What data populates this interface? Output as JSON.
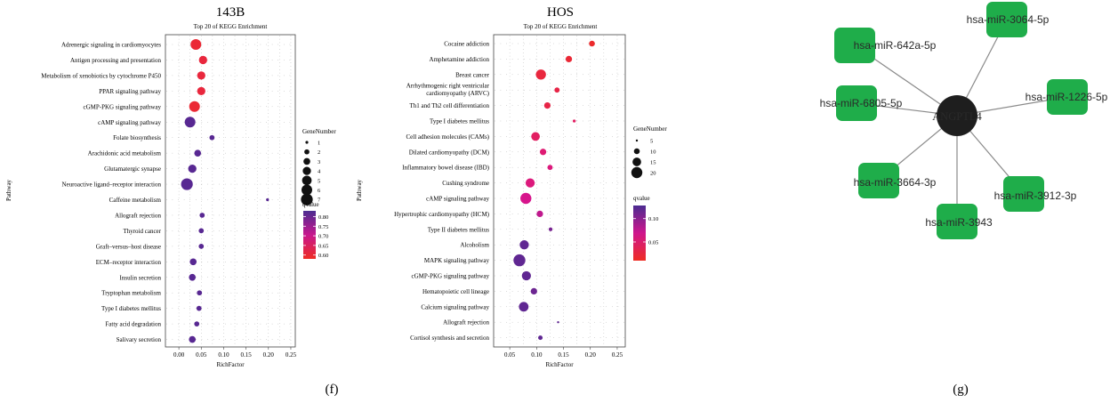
{
  "chart_data": [
    {
      "type": "scatter",
      "title": "143B",
      "subtitle": "Top 20 of KEGG Enrichment",
      "xlabel": "RichFactor",
      "ylabel": "Pathway",
      "xlim": [
        -0.03,
        0.26
      ],
      "xticks": [
        "0.00",
        "0.05",
        "0.10",
        "0.15",
        "0.20",
        "0.25"
      ],
      "xtick_values": [
        0.0,
        0.05,
        0.1,
        0.15,
        0.2,
        0.25
      ],
      "grid": true,
      "categories": [
        "Adrenergic signaling in cardiomyocytes",
        "Antigen processing and presentation",
        "Metabolism of xenobiotics by cytochrome P450",
        "PPAR signaling pathway",
        "cGMP-PKG signaling pathway",
        "cAMP signaling pathway",
        "Folate biosynthesis",
        "Arachidonic acid metabolism",
        "Glutamatergic synapse",
        "Neuroactive ligand–receptor interaction",
        "Caffeine metabolism",
        "Allograft rejection",
        "Thyroid cancer",
        "Graft–versus–host disease",
        "ECM–receptor interaction",
        "Insulin secretion",
        "Tryptophan metabolism",
        "Type I diabetes mellitus",
        "Fatty acid degradation",
        "Salivary secretion"
      ],
      "points": [
        {
          "pathway": "Adrenergic signaling in cardiomyocytes",
          "richfactor": 0.038,
          "genes": 6,
          "qvalue": 0.6
        },
        {
          "pathway": "Antigen processing and presentation",
          "richfactor": 0.054,
          "genes": 4,
          "qvalue": 0.61
        },
        {
          "pathway": "Metabolism of xenobiotics by cytochrome P450",
          "richfactor": 0.05,
          "genes": 4,
          "qvalue": 0.61
        },
        {
          "pathway": "PPAR signaling pathway",
          "richfactor": 0.05,
          "genes": 4,
          "qvalue": 0.61
        },
        {
          "pathway": "cGMP-PKG signaling pathway",
          "richfactor": 0.035,
          "genes": 6,
          "qvalue": 0.6
        },
        {
          "pathway": "cAMP signaling pathway",
          "richfactor": 0.025,
          "genes": 6,
          "qvalue": 0.82
        },
        {
          "pathway": "Folate biosynthesis",
          "richfactor": 0.074,
          "genes": 2,
          "qvalue": 0.82
        },
        {
          "pathway": "Arachidonic acid metabolism",
          "richfactor": 0.042,
          "genes": 3,
          "qvalue": 0.82
        },
        {
          "pathway": "Glutamatergic synapse",
          "richfactor": 0.03,
          "genes": 4,
          "qvalue": 0.82
        },
        {
          "pathway": "Neuroactive ligand–receptor interaction",
          "richfactor": 0.018,
          "genes": 7,
          "qvalue": 0.82
        },
        {
          "pathway": "Caffeine metabolism",
          "richfactor": 0.198,
          "genes": 1,
          "qvalue": 0.82
        },
        {
          "pathway": "Allograft rejection",
          "richfactor": 0.052,
          "genes": 2,
          "qvalue": 0.82
        },
        {
          "pathway": "Thyroid cancer",
          "richfactor": 0.05,
          "genes": 2,
          "qvalue": 0.82
        },
        {
          "pathway": "Graft–versus–host disease",
          "richfactor": 0.05,
          "genes": 2,
          "qvalue": 0.82
        },
        {
          "pathway": "ECM–receptor interaction",
          "richfactor": 0.032,
          "genes": 3,
          "qvalue": 0.82
        },
        {
          "pathway": "Insulin secretion",
          "richfactor": 0.03,
          "genes": 3,
          "qvalue": 0.82
        },
        {
          "pathway": "Tryptophan metabolism",
          "richfactor": 0.046,
          "genes": 2,
          "qvalue": 0.82
        },
        {
          "pathway": "Type I diabetes mellitus",
          "richfactor": 0.045,
          "genes": 2,
          "qvalue": 0.82
        },
        {
          "pathway": "Fatty acid degradation",
          "richfactor": 0.04,
          "genes": 2,
          "qvalue": 0.82
        },
        {
          "pathway": "Salivary secretion",
          "richfactor": 0.03,
          "genes": 3,
          "qvalue": 0.82
        }
      ],
      "size_legend": {
        "title": "GeneNumber",
        "values": [
          "1",
          "2",
          "3",
          "4",
          "5",
          "6",
          "7"
        ],
        "numeric": [
          1,
          2,
          3,
          4,
          5,
          6,
          7
        ]
      },
      "color_legend": {
        "title": "qvalue",
        "ticks": [
          "0.80",
          "0.75",
          "0.70",
          "0.65",
          "0.60"
        ],
        "tick_values": [
          0.8,
          0.75,
          0.7,
          0.65,
          0.6
        ],
        "range": [
          0.58,
          0.83
        ]
      },
      "panel_label": "(f)"
    },
    {
      "type": "scatter",
      "title": "HOS",
      "subtitle": "Top 20 of KEGG Enrichment",
      "xlabel": "RichFactor",
      "ylabel": "Pathway",
      "xlim": [
        0.02,
        0.265
      ],
      "xticks": [
        "0.05",
        "0.10",
        "0.15",
        "0.20",
        "0.25"
      ],
      "xtick_values": [
        0.05,
        0.1,
        0.15,
        0.2,
        0.25
      ],
      "grid": true,
      "categories": [
        "Cocaine addiction",
        "Amphetamine addiction",
        "Breast cancer",
        "Arrhythmogenic right ventricular\ncardiomyopathy (ARVC)",
        "Th1 and Th2 cell differentiation",
        "Type I diabetes mellitus",
        "Cell adhesion molecules (CAMs)",
        "Dilated cardiomyopathy (DCM)",
        "Inflammatory bowel disease (IBD)",
        "Cushing syndrome",
        "cAMP signaling pathway",
        "Hypertrophic cardiomyopathy (HCM)",
        "Type II diabetes mellitus",
        "Alcoholism",
        "MAPK signaling pathway",
        "cGMP-PKG signaling pathway",
        "Hematopoietic cell lineage",
        "Calcium signaling pathway",
        "Allograft rejection",
        "Cortisol synthesis and secretion"
      ],
      "points": [
        {
          "pathway": "Cocaine addiction",
          "richfactor": 0.203,
          "genes": 10,
          "qvalue": 0.015
        },
        {
          "pathway": "Amphetamine addiction",
          "richfactor": 0.16,
          "genes": 11,
          "qvalue": 0.02
        },
        {
          "pathway": "Breast cancer",
          "richfactor": 0.108,
          "genes": 18,
          "qvalue": 0.025
        },
        {
          "pathway": "Arrhythmogenic right ventricular\ncardiomyopathy (ARVC)",
          "richfactor": 0.138,
          "genes": 9,
          "qvalue": 0.03
        },
        {
          "pathway": "Th1 and Th2 cell differentiation",
          "richfactor": 0.12,
          "genes": 11,
          "qvalue": 0.03
        },
        {
          "pathway": "Type I diabetes mellitus",
          "richfactor": 0.17,
          "genes": 6,
          "qvalue": 0.045
        },
        {
          "pathway": "Cell adhesion molecules (CAMs)",
          "richfactor": 0.098,
          "genes": 15,
          "qvalue": 0.045
        },
        {
          "pathway": "Dilated cardiomyopathy (DCM)",
          "richfactor": 0.112,
          "genes": 11,
          "qvalue": 0.055
        },
        {
          "pathway": "Inflammatory bowel disease (IBD)",
          "richfactor": 0.125,
          "genes": 9,
          "qvalue": 0.06
        },
        {
          "pathway": "Cushing syndrome",
          "richfactor": 0.088,
          "genes": 16,
          "qvalue": 0.06
        },
        {
          "pathway": "cAMP signaling pathway",
          "richfactor": 0.08,
          "genes": 20,
          "qvalue": 0.07
        },
        {
          "pathway": "Hypertrophic cardiomyopathy (HCM)",
          "richfactor": 0.106,
          "genes": 11,
          "qvalue": 0.08
        },
        {
          "pathway": "Type II diabetes mellitus",
          "richfactor": 0.126,
          "genes": 7,
          "qvalue": 0.11
        },
        {
          "pathway": "Alcoholism",
          "richfactor": 0.077,
          "genes": 16,
          "qvalue": 0.12
        },
        {
          "pathway": "MAPK signaling pathway",
          "richfactor": 0.068,
          "genes": 22,
          "qvalue": 0.12
        },
        {
          "pathway": "cGMP-PKG signaling pathway",
          "richfactor": 0.081,
          "genes": 16,
          "qvalue": 0.12
        },
        {
          "pathway": "Hematopoietic cell lineage",
          "richfactor": 0.095,
          "genes": 11,
          "qvalue": 0.115
        },
        {
          "pathway": "Calcium signaling pathway",
          "richfactor": 0.076,
          "genes": 17,
          "qvalue": 0.12
        },
        {
          "pathway": "Allograft rejection",
          "richfactor": 0.14,
          "genes": 5,
          "qvalue": 0.12
        },
        {
          "pathway": "Cortisol synthesis and secretion",
          "richfactor": 0.107,
          "genes": 8,
          "qvalue": 0.12
        }
      ],
      "size_legend": {
        "title": "GeneNumber",
        "values": [
          "5",
          "10",
          "15",
          "20"
        ],
        "numeric": [
          5,
          10,
          15,
          20
        ]
      },
      "color_legend": {
        "title": "qvalue",
        "ticks": [
          "0.10",
          "0.05"
        ],
        "tick_values": [
          0.1,
          0.05
        ],
        "range": [
          0.01,
          0.128
        ]
      },
      "panel_label": ""
    }
  ],
  "network": {
    "center": "ANGPTL4",
    "nodes": [
      "hsa-miR-642a-5p",
      "hsa-miR-3064-5p",
      "hsa-miR-1226-5p",
      "hsa-miR-6805-5p",
      "hsa-miR-3664-3p",
      "hsa-miR-3912-3p",
      "hsa-miR-3943"
    ],
    "node_color": "#1fad4a",
    "hub_color": "#1e1e1e",
    "edge_color": "#8a8a8a",
    "panel_label": "(g)"
  },
  "colors": {
    "low_q": "#ee2d24",
    "mid_q": "#d9158c",
    "high_q": "#4d2a93",
    "grid": "#888888"
  }
}
